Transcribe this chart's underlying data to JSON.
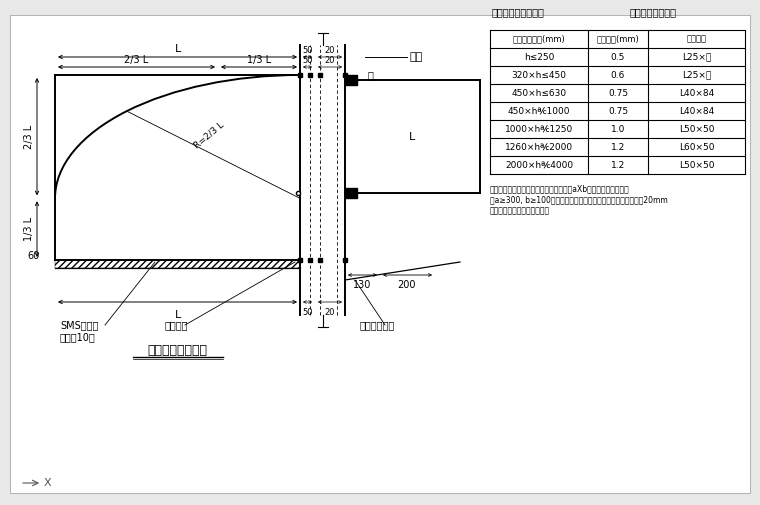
{
  "bg_color": "#e8e8e8",
  "drawing_bg": "#ffffff",
  "line_color": "#000000",
  "title": "不锈钔风罩大样图",
  "table_title1": "风罩制作要求厂商：",
  "table_title2": "采用规格见下表：",
  "table_headers": [
    "风罩最大尺寸(mm)",
    "频板厚度(mm)",
    "适用标准"
  ],
  "table_rows": [
    [
      "h≤250",
      "0.5",
      "L25×厕"
    ],
    [
      "320×h≤450",
      "0.6",
      "L25×厕"
    ],
    [
      "450×h≤630",
      "0.75",
      "L40×84"
    ],
    [
      "450×h℀1000",
      "0.75",
      "L40×84"
    ],
    [
      "1000×h℀1250",
      "1.0",
      "L50×50"
    ],
    [
      "1260×h℀2000",
      "1.2",
      "L60×50"
    ],
    [
      "2000×h℀4000",
      "1.2",
      "L50×50"
    ]
  ],
  "note_lines": [
    "注：为保证风罩的制作质量，表中尺寸为aXb，即内净尺寸如下：",
    "（a≥300, b≥100），二者取其较小一者，内框多数整充材料厔20mm",
    "风罩一延尺寸不得大于内框。"
  ],
  "wall_label": "墙壁",
  "label_sms1": "SMS防雨层",
  "label_sms2": "网格：10目",
  "label_seal": "密封坠层",
  "label_pipe": "内拆兰密封管",
  "label_dim_L_mid": "L",
  "dim_50": "50",
  "dim_20": "20",
  "dim_130": "130",
  "dim_200": "200",
  "dim_L": "L",
  "dim_23L": "2/3 L",
  "dim_13L": "1/3 L",
  "dim_R": "R=2/3 L",
  "dim_60": "60"
}
